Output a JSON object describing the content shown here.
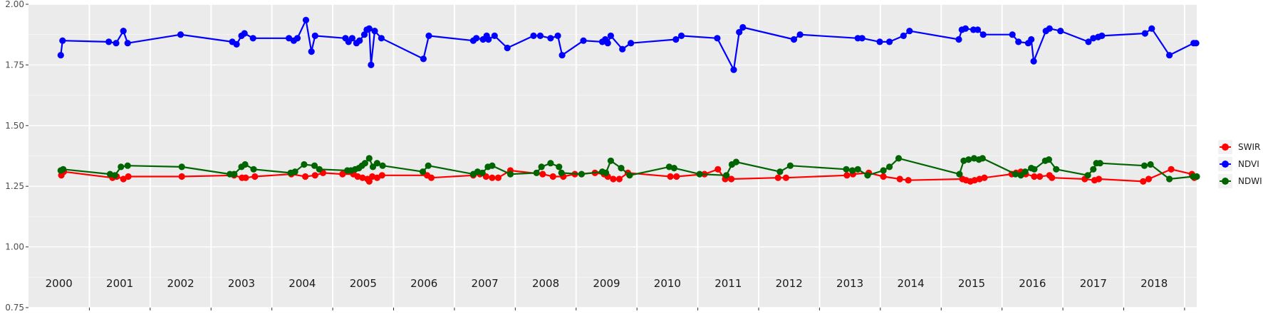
{
  "chart_data": {
    "type": "line",
    "title": "",
    "xlabel": "",
    "ylabel": "",
    "ylim": [
      0.75,
      2.0
    ],
    "xlim": [
      1999.5,
      2018.7
    ],
    "y_ticks": [
      "0.75",
      "1.00",
      "1.25",
      "1.50",
      "1.75",
      "2.00"
    ],
    "y_tick_values": [
      0.75,
      1.0,
      1.25,
      1.5,
      1.75,
      2.0
    ],
    "year_labels": [
      "2000",
      "2001",
      "2002",
      "2003",
      "2004",
      "2005",
      "2006",
      "2007",
      "2008",
      "2009",
      "2010",
      "2011",
      "2012",
      "2013",
      "2014",
      "2015",
      "2016",
      "2017",
      "2018"
    ],
    "grid": true,
    "background": "#ebebeb",
    "legend_position": "right",
    "series": [
      {
        "name": "SWIR",
        "color": "#ff0000",
        "points": [
          [
            2000.04,
            1.295
          ],
          [
            2000.08,
            1.31
          ],
          [
            2000.88,
            1.285
          ],
          [
            2000.95,
            1.29
          ],
          [
            2001.06,
            1.28
          ],
          [
            2001.14,
            1.29
          ],
          [
            2002.02,
            1.29
          ],
          [
            2002.88,
            1.295
          ],
          [
            2003.01,
            1.285
          ],
          [
            2003.07,
            1.285
          ],
          [
            2003.22,
            1.29
          ],
          [
            2003.82,
            1.3
          ],
          [
            2004.05,
            1.29
          ],
          [
            2004.21,
            1.295
          ],
          [
            2004.34,
            1.305
          ],
          [
            2004.66,
            1.3
          ],
          [
            2004.84,
            1.3
          ],
          [
            2004.91,
            1.29
          ],
          [
            2004.99,
            1.285
          ],
          [
            2005.07,
            1.28
          ],
          [
            2005.1,
            1.27
          ],
          [
            2005.15,
            1.29
          ],
          [
            2005.23,
            1.285
          ],
          [
            2005.31,
            1.295
          ],
          [
            2006.05,
            1.295
          ],
          [
            2006.12,
            1.285
          ],
          [
            2006.81,
            1.295
          ],
          [
            2006.92,
            1.3
          ],
          [
            2007.02,
            1.29
          ],
          [
            2007.12,
            1.285
          ],
          [
            2007.22,
            1.285
          ],
          [
            2007.42,
            1.315
          ],
          [
            2007.95,
            1.3
          ],
          [
            2008.12,
            1.29
          ],
          [
            2008.29,
            1.29
          ],
          [
            2008.48,
            1.3
          ],
          [
            2008.81,
            1.305
          ],
          [
            2008.96,
            1.3
          ],
          [
            2009.02,
            1.29
          ],
          [
            2009.11,
            1.28
          ],
          [
            2009.21,
            1.28
          ],
          [
            2009.35,
            1.305
          ],
          [
            2010.05,
            1.29
          ],
          [
            2010.15,
            1.29
          ],
          [
            2010.61,
            1.3
          ],
          [
            2010.83,
            1.32
          ],
          [
            2010.95,
            1.28
          ],
          [
            2011.05,
            1.28
          ],
          [
            2011.82,
            1.285
          ],
          [
            2011.95,
            1.285
          ],
          [
            2012.95,
            1.295
          ],
          [
            2013.05,
            1.3
          ],
          [
            2013.31,
            1.305
          ],
          [
            2013.55,
            1.29
          ],
          [
            2013.82,
            1.28
          ],
          [
            2013.96,
            1.275
          ],
          [
            2014.85,
            1.28
          ],
          [
            2014.91,
            1.275
          ],
          [
            2014.98,
            1.27
          ],
          [
            2015.05,
            1.275
          ],
          [
            2015.13,
            1.28
          ],
          [
            2015.21,
            1.285
          ],
          [
            2015.66,
            1.3
          ],
          [
            2015.73,
            1.305
          ],
          [
            2015.81,
            1.31
          ],
          [
            2015.89,
            1.3
          ],
          [
            2016.03,
            1.29
          ],
          [
            2016.12,
            1.29
          ],
          [
            2016.28,
            1.295
          ],
          [
            2016.32,
            1.285
          ],
          [
            2016.86,
            1.28
          ],
          [
            2017.02,
            1.275
          ],
          [
            2017.09,
            1.28
          ],
          [
            2017.82,
            1.27
          ],
          [
            2017.91,
            1.28
          ],
          [
            2018.28,
            1.32
          ],
          [
            2018.62,
            1.3
          ],
          [
            2018.66,
            1.285
          ]
        ]
      },
      {
        "name": "NDVI",
        "color": "#0000ff",
        "points": [
          [
            2000.03,
            1.79
          ],
          [
            2000.06,
            1.85
          ],
          [
            2000.82,
            1.845
          ],
          [
            2000.94,
            1.84
          ],
          [
            2001.06,
            1.89
          ],
          [
            2001.13,
            1.84
          ],
          [
            2002.0,
            1.875
          ],
          [
            2002.85,
            1.845
          ],
          [
            2002.92,
            1.835
          ],
          [
            2003.0,
            1.87
          ],
          [
            2003.05,
            1.88
          ],
          [
            2003.19,
            1.86
          ],
          [
            2003.78,
            1.86
          ],
          [
            2003.86,
            1.85
          ],
          [
            2003.92,
            1.86
          ],
          [
            2004.06,
            1.935
          ],
          [
            2004.15,
            1.805
          ],
          [
            2004.21,
            1.87
          ],
          [
            2004.71,
            1.86
          ],
          [
            2004.76,
            1.845
          ],
          [
            2004.82,
            1.86
          ],
          [
            2004.89,
            1.84
          ],
          [
            2004.94,
            1.85
          ],
          [
            2005.02,
            1.875
          ],
          [
            2005.06,
            1.895
          ],
          [
            2005.1,
            1.9
          ],
          [
            2005.13,
            1.75
          ],
          [
            2005.19,
            1.89
          ],
          [
            2005.3,
            1.86
          ],
          [
            2005.99,
            1.775
          ],
          [
            2006.08,
            1.87
          ],
          [
            2006.81,
            1.85
          ],
          [
            2006.86,
            1.86
          ],
          [
            2006.97,
            1.855
          ],
          [
            2007.03,
            1.87
          ],
          [
            2007.06,
            1.855
          ],
          [
            2007.16,
            1.87
          ],
          [
            2007.37,
            1.82
          ],
          [
            2007.8,
            1.87
          ],
          [
            2007.91,
            1.87
          ],
          [
            2008.08,
            1.86
          ],
          [
            2008.2,
            1.87
          ],
          [
            2008.27,
            1.79
          ],
          [
            2008.62,
            1.85
          ],
          [
            2008.93,
            1.845
          ],
          [
            2008.98,
            1.855
          ],
          [
            2009.02,
            1.84
          ],
          [
            2009.07,
            1.87
          ],
          [
            2009.26,
            1.815
          ],
          [
            2009.4,
            1.84
          ],
          [
            2010.14,
            1.855
          ],
          [
            2010.23,
            1.87
          ],
          [
            2010.82,
            1.86
          ],
          [
            2011.09,
            1.73
          ],
          [
            2011.18,
            1.885
          ],
          [
            2011.24,
            1.905
          ],
          [
            2012.08,
            1.855
          ],
          [
            2012.18,
            1.875
          ],
          [
            2013.13,
            1.86
          ],
          [
            2013.2,
            1.86
          ],
          [
            2013.49,
            1.845
          ],
          [
            2013.65,
            1.845
          ],
          [
            2013.88,
            1.87
          ],
          [
            2013.98,
            1.89
          ],
          [
            2014.79,
            1.855
          ],
          [
            2014.84,
            1.895
          ],
          [
            2014.9,
            1.9
          ],
          [
            2015.03,
            1.895
          ],
          [
            2015.1,
            1.895
          ],
          [
            2015.19,
            1.875
          ],
          [
            2015.67,
            1.875
          ],
          [
            2015.77,
            1.845
          ],
          [
            2015.93,
            1.84
          ],
          [
            2015.98,
            1.855
          ],
          [
            2016.02,
            1.765
          ],
          [
            2016.22,
            1.89
          ],
          [
            2016.28,
            1.9
          ],
          [
            2016.46,
            1.89
          ],
          [
            2016.92,
            1.845
          ],
          [
            2017.0,
            1.86
          ],
          [
            2017.08,
            1.865
          ],
          [
            2017.14,
            1.87
          ],
          [
            2017.85,
            1.88
          ],
          [
            2017.96,
            1.9
          ],
          [
            2018.25,
            1.79
          ],
          [
            2018.65,
            1.84
          ],
          [
            2018.69,
            1.84
          ]
        ]
      },
      {
        "name": "NDWI",
        "color": "#006400",
        "points": [
          [
            2000.03,
            1.315
          ],
          [
            2000.07,
            1.32
          ],
          [
            2000.84,
            1.3
          ],
          [
            2000.92,
            1.295
          ],
          [
            2001.02,
            1.33
          ],
          [
            2001.13,
            1.335
          ],
          [
            2002.02,
            1.33
          ],
          [
            2002.81,
            1.3
          ],
          [
            2002.88,
            1.3
          ],
          [
            2003.0,
            1.33
          ],
          [
            2003.06,
            1.34
          ],
          [
            2003.2,
            1.32
          ],
          [
            2003.81,
            1.305
          ],
          [
            2003.88,
            1.31
          ],
          [
            2004.03,
            1.34
          ],
          [
            2004.2,
            1.335
          ],
          [
            2004.28,
            1.32
          ],
          [
            2004.74,
            1.315
          ],
          [
            2004.8,
            1.315
          ],
          [
            2004.87,
            1.32
          ],
          [
            2004.93,
            1.325
          ],
          [
            2004.98,
            1.335
          ],
          [
            2005.03,
            1.345
          ],
          [
            2005.1,
            1.365
          ],
          [
            2005.16,
            1.33
          ],
          [
            2005.23,
            1.345
          ],
          [
            2005.32,
            1.335
          ],
          [
            2005.98,
            1.31
          ],
          [
            2006.07,
            1.335
          ],
          [
            2006.81,
            1.3
          ],
          [
            2006.88,
            1.31
          ],
          [
            2006.96,
            1.305
          ],
          [
            2007.05,
            1.33
          ],
          [
            2007.12,
            1.335
          ],
          [
            2007.42,
            1.3
          ],
          [
            2007.85,
            1.305
          ],
          [
            2007.93,
            1.33
          ],
          [
            2008.08,
            1.345
          ],
          [
            2008.22,
            1.33
          ],
          [
            2008.26,
            1.305
          ],
          [
            2008.59,
            1.3
          ],
          [
            2008.93,
            1.31
          ],
          [
            2008.99,
            1.305
          ],
          [
            2009.07,
            1.355
          ],
          [
            2009.24,
            1.325
          ],
          [
            2009.38,
            1.295
          ],
          [
            2010.03,
            1.33
          ],
          [
            2010.11,
            1.325
          ],
          [
            2010.53,
            1.3
          ],
          [
            2010.97,
            1.295
          ],
          [
            2011.06,
            1.34
          ],
          [
            2011.13,
            1.35
          ],
          [
            2011.85,
            1.31
          ],
          [
            2012.02,
            1.335
          ],
          [
            2012.94,
            1.32
          ],
          [
            2013.04,
            1.315
          ],
          [
            2013.13,
            1.32
          ],
          [
            2013.29,
            1.295
          ],
          [
            2013.55,
            1.315
          ],
          [
            2013.65,
            1.33
          ],
          [
            2013.8,
            1.365
          ],
          [
            2014.8,
            1.3
          ],
          [
            2014.87,
            1.355
          ],
          [
            2014.95,
            1.36
          ],
          [
            2015.04,
            1.365
          ],
          [
            2015.12,
            1.36
          ],
          [
            2015.18,
            1.365
          ],
          [
            2015.72,
            1.3
          ],
          [
            2015.81,
            1.295
          ],
          [
            2015.88,
            1.31
          ],
          [
            2015.98,
            1.325
          ],
          [
            2016.03,
            1.32
          ],
          [
            2016.21,
            1.355
          ],
          [
            2016.27,
            1.36
          ],
          [
            2016.39,
            1.32
          ],
          [
            2016.91,
            1.295
          ],
          [
            2017.0,
            1.32
          ],
          [
            2017.05,
            1.345
          ],
          [
            2017.11,
            1.345
          ],
          [
            2017.84,
            1.335
          ],
          [
            2017.94,
            1.34
          ],
          [
            2018.25,
            1.28
          ],
          [
            2018.64,
            1.29
          ],
          [
            2018.7,
            1.29
          ]
        ]
      }
    ]
  }
}
